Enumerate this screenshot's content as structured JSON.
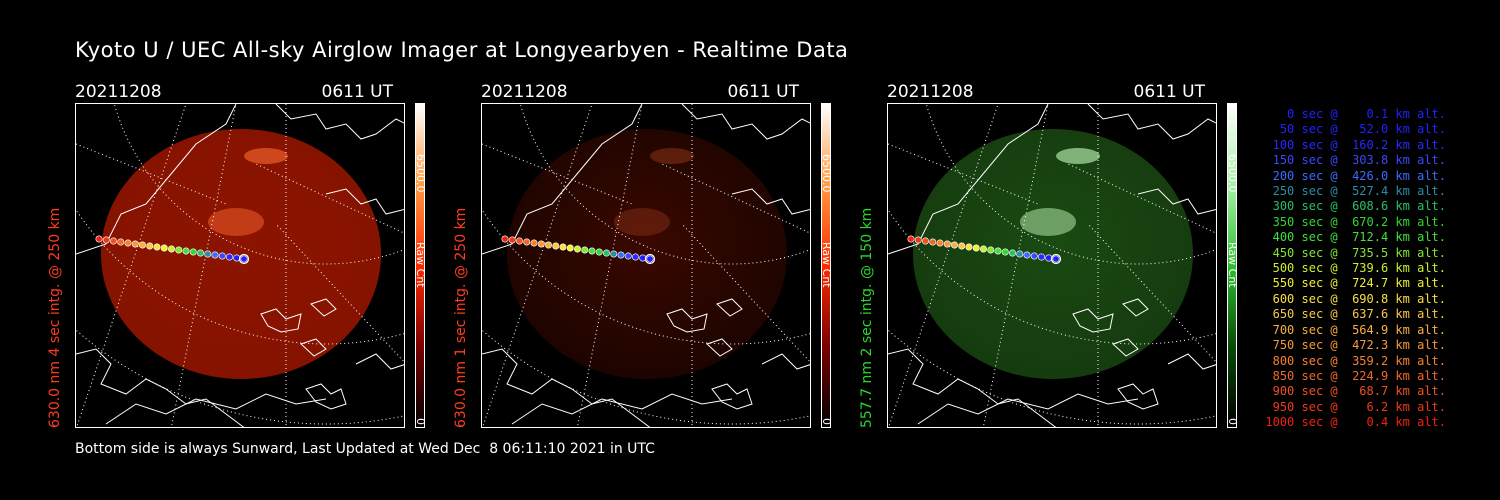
{
  "title": "Kyoto U / UEC All-sky Airglow Imager at Longyearbyen - Realtime Data",
  "footer": "Bottom side is always Sunward, Last Updated at Wed Dec  8 06:11:10 2021 in UTC",
  "panels": [
    {
      "date": "20211208",
      "time": "0611 UT",
      "ylabel": "630.0 nm 4 sec intg. @ 250 km",
      "ylabel_color": "#ff3b1f",
      "colorbar_max": "6500.0",
      "colorbar_label": "Raw Cnt",
      "colorbar_min": "0",
      "colorbar_gradient": [
        "#000000",
        "#7a0000",
        "#ff2a00",
        "#ff9a40",
        "#ffffff"
      ],
      "image_color": "#8c1400",
      "image_brightness": 1.0
    },
    {
      "date": "20211208",
      "time": "0611 UT",
      "ylabel": "630.0 nm 1 sec intg. @ 250 km",
      "ylabel_color": "#ff3b1f",
      "colorbar_max": "6500.0",
      "colorbar_label": "Raw Cnt",
      "colorbar_min": "0",
      "colorbar_gradient": [
        "#000000",
        "#7a0000",
        "#ff2a00",
        "#ff9a40",
        "#ffffff"
      ],
      "image_color": "#3a0800",
      "image_brightness": 0.4
    },
    {
      "date": "20211208",
      "time": "0611 UT",
      "ylabel": "557.7 nm 2 sec intg. @ 150 km",
      "ylabel_color": "#2dd62d",
      "colorbar_max": "6500.0",
      "colorbar_label": "Raw Cnt",
      "colorbar_min": "0",
      "colorbar_gradient": [
        "#000000",
        "#0a4a0a",
        "#2fc02f",
        "#a8f0a8",
        "#ffffff"
      ],
      "image_color": "#1a4a12",
      "image_brightness": 0.8
    }
  ],
  "legend": [
    {
      "text": "   0 sec @    0.1 km alt.",
      "color": "#2020ff"
    },
    {
      "text": "  50 sec @   52.0 km alt.",
      "color": "#2020ff"
    },
    {
      "text": " 100 sec @  160.2 km alt.",
      "color": "#2828ff"
    },
    {
      "text": " 150 sec @  303.8 km alt.",
      "color": "#3a48ff"
    },
    {
      "text": " 200 sec @  426.0 km alt.",
      "color": "#3a6cff"
    },
    {
      "text": " 250 sec @  527.4 km alt.",
      "color": "#2a8ca8"
    },
    {
      "text": " 300 sec @  608.6 km alt.",
      "color": "#28c06a"
    },
    {
      "text": " 350 sec @  670.2 km alt.",
      "color": "#30d830"
    },
    {
      "text": " 400 sec @  712.4 km alt.",
      "color": "#40e040"
    },
    {
      "text": " 450 sec @  735.5 km alt.",
      "color": "#80e830"
    },
    {
      "text": " 500 sec @  739.6 km alt.",
      "color": "#c8f030"
    },
    {
      "text": " 550 sec @  724.7 km alt.",
      "color": "#f0f030"
    },
    {
      "text": " 600 sec @  690.8 km alt.",
      "color": "#f8e040"
    },
    {
      "text": " 650 sec @  637.6 km alt.",
      "color": "#f8c848"
    },
    {
      "text": " 700 sec @  564.9 km alt.",
      "color": "#f8b040"
    },
    {
      "text": " 750 sec @  472.3 km alt.",
      "color": "#f89838"
    },
    {
      "text": " 800 sec @  359.2 km alt.",
      "color": "#f88030"
    },
    {
      "text": " 850 sec @  224.9 km alt.",
      "color": "#f06828"
    },
    {
      "text": " 900 sec @   68.7 km alt.",
      "color": "#f05020"
    },
    {
      "text": " 950 sec @    6.2 km alt.",
      "color": "#f03818"
    },
    {
      "text": "1000 sec @    0.4 km alt.",
      "color": "#f02010"
    }
  ]
}
